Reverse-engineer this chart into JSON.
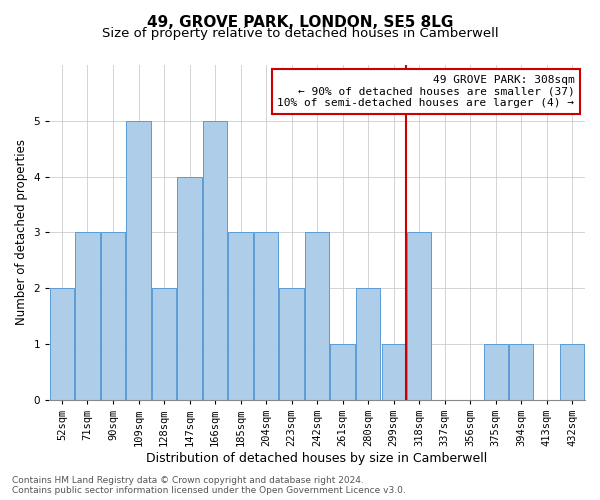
{
  "title": "49, GROVE PARK, LONDON, SE5 8LG",
  "subtitle": "Size of property relative to detached houses in Camberwell",
  "xlabel": "Distribution of detached houses by size in Camberwell",
  "ylabel": "Number of detached properties",
  "categories": [
    "52sqm",
    "71sqm",
    "90sqm",
    "109sqm",
    "128sqm",
    "147sqm",
    "166sqm",
    "185sqm",
    "204sqm",
    "223sqm",
    "242sqm",
    "261sqm",
    "280sqm",
    "299sqm",
    "318sqm",
    "337sqm",
    "356sqm",
    "375sqm",
    "394sqm",
    "413sqm",
    "432sqm"
  ],
  "values": [
    2,
    3,
    3,
    5,
    2,
    4,
    5,
    3,
    3,
    2,
    3,
    1,
    2,
    1,
    3,
    0,
    0,
    1,
    1,
    0,
    1
  ],
  "bar_color": "#aecde8",
  "bar_edgecolor": "#5b9bd5",
  "vline_color": "#cc0000",
  "annotation_text": "49 GROVE PARK: 308sqm\n← 90% of detached houses are smaller (37)\n10% of semi-detached houses are larger (4) →",
  "annotation_box_color": "#cc0000",
  "ylim": [
    0,
    6
  ],
  "yticks": [
    0,
    1,
    2,
    3,
    4,
    5,
    6
  ],
  "footer": "Contains HM Land Registry data © Crown copyright and database right 2024.\nContains public sector information licensed under the Open Government Licence v3.0.",
  "title_fontsize": 11,
  "subtitle_fontsize": 9.5,
  "xlabel_fontsize": 9,
  "ylabel_fontsize": 8.5,
  "tick_fontsize": 7.5,
  "annot_fontsize": 8,
  "footer_fontsize": 6.5,
  "background_color": "#ffffff",
  "grid_color": "#cccccc"
}
